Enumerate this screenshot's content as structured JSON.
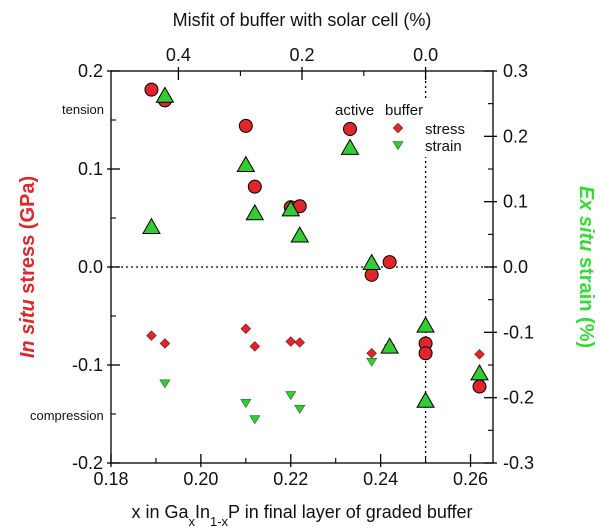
{
  "chart_data": {
    "type": "scatter",
    "x_axis": {
      "label_prefix": "x in Ga",
      "label_sub_x": "x",
      "label_middle": "In",
      "label_sub_1mx": "1-x",
      "label_suffix": "P in final layer of graded buffer",
      "range": [
        0.18,
        0.265
      ],
      "ticks": [
        0.18,
        0.2,
        0.22,
        0.24,
        0.26
      ],
      "tick_labels": [
        "0.18",
        "0.20",
        "0.22",
        "0.24",
        "0.26"
      ]
    },
    "top_axis": {
      "label": "Misfit of buffer with solar cell (%)",
      "tick_labels": [
        "0.4",
        "0.2",
        "0.0"
      ],
      "tick_positions_x": [
        0.195,
        0.2225,
        0.25
      ]
    },
    "left_axis": {
      "label_italic": "In situ",
      "label_rest": " stress (GPa)",
      "range": [
        -0.2,
        0.2
      ],
      "ticks": [
        -0.2,
        -0.1,
        0.0,
        0.1,
        0.2
      ],
      "tick_labels": [
        "-0.2",
        "-0.1",
        "0.0",
        "0.1",
        "0.2"
      ],
      "color": "#e0262a"
    },
    "right_axis": {
      "label_italic": "Ex situ",
      "label_rest": " strain (%)",
      "range": [
        -0.3,
        0.3
      ],
      "ticks": [
        -0.3,
        -0.2,
        -0.1,
        0.0,
        0.1,
        0.2,
        0.3
      ],
      "tick_labels": [
        "-0.3",
        "-0.2",
        "-0.1",
        "0.0",
        "0.1",
        "0.2",
        "0.3"
      ],
      "color": "#33dd33"
    },
    "annotations": {
      "tension": "tension",
      "compression": "compression"
    },
    "legend": {
      "header_active": "active",
      "header_buffer": "buffer",
      "row_stress": "stress",
      "row_strain": "strain",
      "position": "top-right"
    },
    "reference_lines": {
      "horizontal_y": 0.0,
      "vertical_x": 0.25
    },
    "series": [
      {
        "name": "stress",
        "layer": "active",
        "marker": "circle",
        "axis": "left",
        "color": "#e0262a",
        "points": [
          {
            "x": 0.189,
            "y": 0.181
          },
          {
            "x": 0.192,
            "y": 0.17
          },
          {
            "x": 0.21,
            "y": 0.144
          },
          {
            "x": 0.212,
            "y": 0.082
          },
          {
            "x": 0.22,
            "y": 0.061
          },
          {
            "x": 0.222,
            "y": 0.062
          },
          {
            "x": 0.238,
            "y": -0.008
          },
          {
            "x": 0.242,
            "y": 0.005
          },
          {
            "x": 0.25,
            "y": -0.078
          },
          {
            "x": 0.25,
            "y": -0.088
          },
          {
            "x": 0.262,
            "y": -0.122
          }
        ]
      },
      {
        "name": "strain",
        "layer": "active",
        "marker": "triangle-up",
        "axis": "right",
        "color": "#33cc33",
        "points": [
          {
            "x": 0.189,
            "y": 0.061
          },
          {
            "x": 0.192,
            "y": 0.262
          },
          {
            "x": 0.21,
            "y": 0.156
          },
          {
            "x": 0.212,
            "y": 0.082
          },
          {
            "x": 0.22,
            "y": 0.088
          },
          {
            "x": 0.222,
            "y": 0.048
          },
          {
            "x": 0.238,
            "y": 0.006
          },
          {
            "x": 0.242,
            "y": -0.122
          },
          {
            "x": 0.25,
            "y": -0.09
          },
          {
            "x": 0.25,
            "y": -0.205
          },
          {
            "x": 0.262,
            "y": -0.163
          }
        ]
      },
      {
        "name": "stress",
        "layer": "buffer",
        "marker": "diamond",
        "axis": "left",
        "color": "#e0262a",
        "points": [
          {
            "x": 0.189,
            "y": -0.07
          },
          {
            "x": 0.192,
            "y": -0.078
          },
          {
            "x": 0.21,
            "y": -0.063
          },
          {
            "x": 0.212,
            "y": -0.081
          },
          {
            "x": 0.22,
            "y": -0.076
          },
          {
            "x": 0.222,
            "y": -0.077
          },
          {
            "x": 0.238,
            "y": -0.088
          },
          {
            "x": 0.242,
            "y": -0.08
          },
          {
            "x": 0.262,
            "y": -0.089
          }
        ]
      },
      {
        "name": "strain",
        "layer": "buffer",
        "marker": "triangle-down",
        "axis": "right",
        "color": "#33cc33",
        "points": [
          {
            "x": 0.192,
            "y": -0.178
          },
          {
            "x": 0.21,
            "y": -0.208
          },
          {
            "x": 0.212,
            "y": -0.233
          },
          {
            "x": 0.22,
            "y": -0.196
          },
          {
            "x": 0.222,
            "y": -0.217
          },
          {
            "x": 0.238,
            "y": -0.145
          },
          {
            "x": 0.242,
            "y": -0.125
          }
        ]
      }
    ]
  }
}
